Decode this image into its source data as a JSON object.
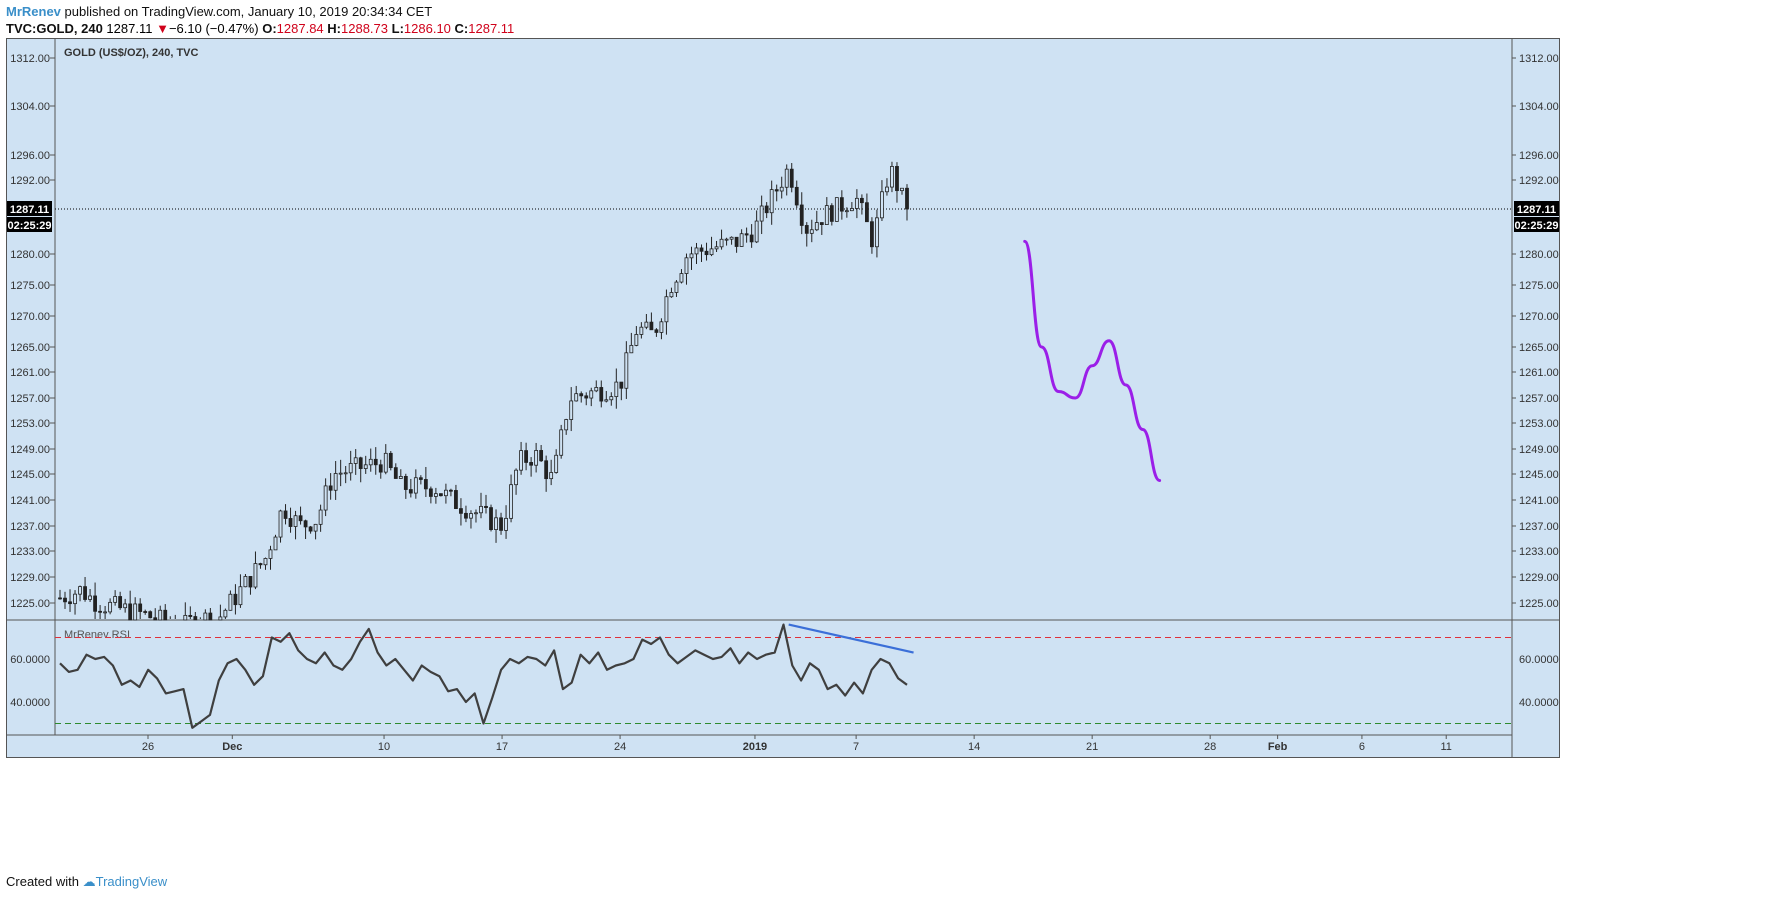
{
  "header": {
    "author": "MrRenev",
    "published": "published on TradingView.com, January 10, 2019 20:34:34 CET"
  },
  "quote": {
    "symbol": "TVC:GOLD, 240",
    "price": "1287.11",
    "change_arrow": "▼",
    "change": "−6.10 (−0.47%)",
    "o_label": "O:",
    "o": "1287.84",
    "h_label": "H:",
    "h": "1288.73",
    "l_label": "L:",
    "l": "1286.10",
    "c_label": "C:",
    "c": "1287.11"
  },
  "footer": {
    "created_with": "Created with",
    "brand": "TradingView"
  },
  "colors": {
    "plot_bg": "#cfe2f3",
    "candle": "#222222",
    "rsi_line": "#3f3f3f",
    "drawing": "#9b1fe8",
    "trendline": "#3b6fd8",
    "overbought": "#e0303a",
    "oversold": "#2e8b2e",
    "price_tag_bg": "#000000"
  },
  "chart_data": [
    {
      "type": "candlestick",
      "title": "GOLD (US$/OZ), 240, TVC",
      "y_ticks": [
        "1312.00",
        "1304.00",
        "1296.00",
        "1292.00",
        "1287.11",
        "1280.00",
        "1275.00",
        "1270.00",
        "1265.00",
        "1261.00",
        "1257.00",
        "1253.00",
        "1249.00",
        "1245.00",
        "1241.00",
        "1237.00",
        "1233.00",
        "1229.00",
        "1225.00"
      ],
      "x_ticks": [
        "26",
        "Dec",
        "10",
        "17",
        "24",
        "2019",
        "7",
        "14",
        "21",
        "28",
        "Feb",
        "6",
        "11"
      ],
      "last_price": "1287.11",
      "countdown": "02:25:29",
      "ylim": [
        1222,
        1315
      ],
      "x_dates": [
        "2018-11-19",
        "2019-01-12"
      ],
      "close_path": [
        [
          "2018-11-19",
          1226
        ],
        [
          "2018-11-20",
          1225
        ],
        [
          "2018-11-21",
          1226
        ],
        [
          "2018-11-22",
          1227
        ],
        [
          "2018-11-23",
          1225
        ],
        [
          "2018-11-26",
          1223
        ],
        [
          "2018-11-27",
          1222
        ],
        [
          "2018-11-28",
          1221
        ],
        [
          "2018-11-29",
          1223
        ],
        [
          "2018-11-30",
          1222
        ],
        [
          "2018-12-03",
          1232
        ],
        [
          "2018-12-04",
          1240
        ],
        [
          "2018-12-05",
          1237
        ],
        [
          "2018-12-06",
          1238
        ],
        [
          "2018-12-07",
          1245
        ],
        [
          "2018-12-10",
          1247
        ],
        [
          "2018-12-11",
          1243
        ],
        [
          "2018-12-12",
          1243
        ],
        [
          "2018-12-13",
          1243
        ],
        [
          "2018-12-14",
          1241
        ],
        [
          "2018-12-17",
          1237
        ],
        [
          "2018-12-18",
          1247
        ],
        [
          "2018-12-19",
          1248
        ],
        [
          "2018-12-20",
          1244
        ],
        [
          "2018-12-21",
          1257
        ],
        [
          "2018-12-24",
          1259
        ],
        [
          "2018-12-25",
          1268
        ],
        [
          "2018-12-26",
          1267
        ],
        [
          "2018-12-27",
          1275
        ],
        [
          "2018-12-28",
          1280
        ],
        [
          "2018-12-31",
          1282
        ],
        [
          "2019-01-01",
          1284
        ],
        [
          "2019-01-03",
          1294
        ],
        [
          "2019-01-04",
          1284
        ],
        [
          "2019-01-05",
          1286
        ],
        [
          "2019-01-07",
          1289
        ],
        [
          "2019-01-08",
          1282
        ],
        [
          "2019-01-09",
          1294
        ],
        [
          "2019-01-10",
          1287.11
        ]
      ],
      "candle_count": 170,
      "drawing_path": [
        [
          "2019-01-17",
          1282
        ],
        [
          "2019-01-18",
          1265
        ],
        [
          "2019-01-19",
          1258
        ],
        [
          "2019-01-20",
          1257
        ],
        [
          "2019-01-21",
          1262
        ],
        [
          "2019-01-22",
          1266
        ],
        [
          "2019-01-23",
          1259
        ],
        [
          "2019-01-24",
          1252
        ],
        [
          "2019-01-25",
          1244
        ]
      ]
    },
    {
      "type": "line",
      "title": "MrRenev RSI",
      "y_ticks": [
        "60.0000",
        "40.0000"
      ],
      "ylim": [
        25,
        80
      ],
      "overbought": 70,
      "oversold": 30,
      "values": [
        58,
        54,
        55,
        62,
        60,
        61,
        57,
        48,
        50,
        47,
        55,
        51,
        44,
        45,
        46,
        28,
        31,
        34,
        50,
        58,
        60,
        55,
        48,
        52,
        70,
        68,
        72,
        64,
        60,
        58,
        63,
        57,
        55,
        60,
        68,
        74,
        63,
        57,
        60,
        55,
        50,
        57,
        54,
        52,
        45,
        46,
        40,
        44,
        30,
        42,
        55,
        60,
        58,
        61,
        60,
        57,
        64,
        46,
        49,
        62,
        58,
        63,
        55,
        57,
        58,
        60,
        69,
        67,
        70,
        62,
        58,
        61,
        64,
        62,
        60,
        61,
        65,
        58,
        63,
        60,
        62,
        63,
        76,
        57,
        50,
        58,
        55,
        46,
        48,
        43,
        49,
        44,
        55,
        60,
        58,
        51,
        48
      ],
      "trendline": [
        [
          76,
          "2019-01-03"
        ],
        [
          63,
          "2019-01-11"
        ]
      ]
    }
  ]
}
